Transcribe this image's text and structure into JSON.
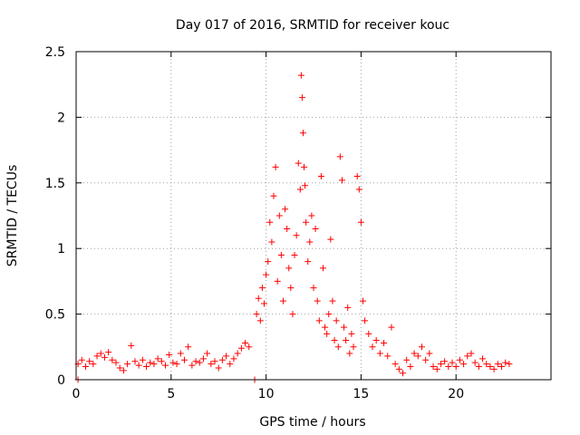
{
  "chart_data": {
    "type": "scatter",
    "title": "Day 017 of 2016, SRMTID for receiver kouc",
    "xlabel": "GPS time / hours",
    "ylabel": "SRMTID / TECUs",
    "xlim": [
      0,
      25
    ],
    "ylim": [
      0,
      2.5
    ],
    "xticks": [
      0,
      5,
      10,
      15,
      20
    ],
    "yticks": [
      0,
      0.5,
      1,
      1.5,
      2,
      2.5
    ],
    "xtick_labels": [
      "0",
      "5",
      "10",
      "15",
      "20"
    ],
    "ytick_labels": [
      "0",
      "0.5",
      "1",
      "1.5",
      "2",
      "2.5"
    ],
    "grid": true,
    "marker": "plus",
    "series": [
      {
        "name": "SRMTID",
        "color": "#ff0000",
        "points": [
          [
            0.1,
            0.0
          ],
          [
            0.1,
            0.12
          ],
          [
            0.3,
            0.15
          ],
          [
            0.5,
            0.1
          ],
          [
            0.7,
            0.14
          ],
          [
            0.9,
            0.12
          ],
          [
            1.1,
            0.18
          ],
          [
            1.3,
            0.2
          ],
          [
            1.5,
            0.17
          ],
          [
            1.7,
            0.21
          ],
          [
            1.9,
            0.15
          ],
          [
            2.1,
            0.13
          ],
          [
            2.3,
            0.09
          ],
          [
            2.5,
            0.07
          ],
          [
            2.7,
            0.12
          ],
          [
            2.9,
            0.26
          ],
          [
            3.1,
            0.14
          ],
          [
            3.3,
            0.11
          ],
          [
            3.5,
            0.15
          ],
          [
            3.7,
            0.1
          ],
          [
            3.9,
            0.13
          ],
          [
            4.1,
            0.12
          ],
          [
            4.3,
            0.16
          ],
          [
            4.5,
            0.14
          ],
          [
            4.7,
            0.11
          ],
          [
            4.9,
            0.19
          ],
          [
            5.1,
            0.13
          ],
          [
            5.3,
            0.12
          ],
          [
            5.5,
            0.2
          ],
          [
            5.7,
            0.15
          ],
          [
            5.9,
            0.25
          ],
          [
            6.1,
            0.11
          ],
          [
            6.3,
            0.14
          ],
          [
            6.5,
            0.13
          ],
          [
            6.7,
            0.16
          ],
          [
            6.9,
            0.2
          ],
          [
            7.1,
            0.12
          ],
          [
            7.3,
            0.14
          ],
          [
            7.5,
            0.09
          ],
          [
            7.7,
            0.15
          ],
          [
            7.9,
            0.18
          ],
          [
            8.1,
            0.12
          ],
          [
            8.3,
            0.16
          ],
          [
            8.5,
            0.2
          ],
          [
            8.7,
            0.24
          ],
          [
            8.9,
            0.28
          ],
          [
            9.1,
            0.25
          ],
          [
            9.4,
            0.0
          ],
          [
            9.5,
            0.5
          ],
          [
            9.6,
            0.62
          ],
          [
            9.7,
            0.45
          ],
          [
            9.8,
            0.7
          ],
          [
            9.9,
            0.58
          ],
          [
            10.0,
            0.8
          ],
          [
            10.1,
            0.9
          ],
          [
            10.2,
            1.2
          ],
          [
            10.3,
            1.05
          ],
          [
            10.4,
            1.4
          ],
          [
            10.5,
            1.62
          ],
          [
            10.6,
            0.75
          ],
          [
            10.7,
            1.25
          ],
          [
            10.8,
            0.95
          ],
          [
            10.9,
            0.6
          ],
          [
            11.0,
            1.3
          ],
          [
            11.1,
            1.15
          ],
          [
            11.2,
            0.85
          ],
          [
            11.3,
            0.7
          ],
          [
            11.4,
            0.5
          ],
          [
            11.5,
            0.95
          ],
          [
            11.6,
            1.1
          ],
          [
            11.7,
            1.65
          ],
          [
            11.8,
            1.45
          ],
          [
            11.85,
            2.32
          ],
          [
            11.9,
            2.15
          ],
          [
            11.95,
            1.88
          ],
          [
            12.0,
            1.62
          ],
          [
            12.05,
            1.48
          ],
          [
            12.1,
            1.2
          ],
          [
            12.2,
            0.9
          ],
          [
            12.3,
            1.05
          ],
          [
            12.4,
            1.25
          ],
          [
            12.5,
            0.7
          ],
          [
            12.6,
            1.15
          ],
          [
            12.7,
            0.6
          ],
          [
            12.8,
            0.45
          ],
          [
            12.9,
            1.55
          ],
          [
            13.0,
            0.85
          ],
          [
            13.1,
            0.4
          ],
          [
            13.2,
            0.35
          ],
          [
            13.3,
            0.5
          ],
          [
            13.4,
            1.07
          ],
          [
            13.5,
            0.6
          ],
          [
            13.6,
            0.3
          ],
          [
            13.7,
            0.45
          ],
          [
            13.8,
            0.25
          ],
          [
            13.9,
            1.7
          ],
          [
            14.0,
            1.52
          ],
          [
            14.1,
            0.4
          ],
          [
            14.2,
            0.3
          ],
          [
            14.3,
            0.55
          ],
          [
            14.4,
            0.2
          ],
          [
            14.5,
            0.35
          ],
          [
            14.6,
            0.25
          ],
          [
            14.8,
            1.55
          ],
          [
            14.9,
            1.45
          ],
          [
            15.0,
            1.2
          ],
          [
            15.1,
            0.6
          ],
          [
            15.2,
            0.45
          ],
          [
            15.4,
            0.35
          ],
          [
            15.6,
            0.25
          ],
          [
            15.8,
            0.3
          ],
          [
            16.0,
            0.2
          ],
          [
            16.2,
            0.28
          ],
          [
            16.4,
            0.18
          ],
          [
            16.6,
            0.4
          ],
          [
            16.8,
            0.12
          ],
          [
            17.0,
            0.08
          ],
          [
            17.2,
            0.05
          ],
          [
            17.4,
            0.15
          ],
          [
            17.6,
            0.1
          ],
          [
            17.8,
            0.2
          ],
          [
            18.0,
            0.18
          ],
          [
            18.2,
            0.25
          ],
          [
            18.4,
            0.15
          ],
          [
            18.6,
            0.2
          ],
          [
            18.8,
            0.1
          ],
          [
            19.0,
            0.08
          ],
          [
            19.2,
            0.12
          ],
          [
            19.4,
            0.14
          ],
          [
            19.6,
            0.1
          ],
          [
            19.8,
            0.13
          ],
          [
            20.0,
            0.1
          ],
          [
            20.2,
            0.15
          ],
          [
            20.4,
            0.12
          ],
          [
            20.6,
            0.18
          ],
          [
            20.8,
            0.2
          ],
          [
            21.0,
            0.13
          ],
          [
            21.2,
            0.1
          ],
          [
            21.4,
            0.16
          ],
          [
            21.6,
            0.12
          ],
          [
            21.8,
            0.1
          ],
          [
            22.0,
            0.08
          ],
          [
            22.2,
            0.12
          ],
          [
            22.4,
            0.1
          ],
          [
            22.6,
            0.13
          ],
          [
            22.8,
            0.12
          ]
        ]
      }
    ]
  }
}
